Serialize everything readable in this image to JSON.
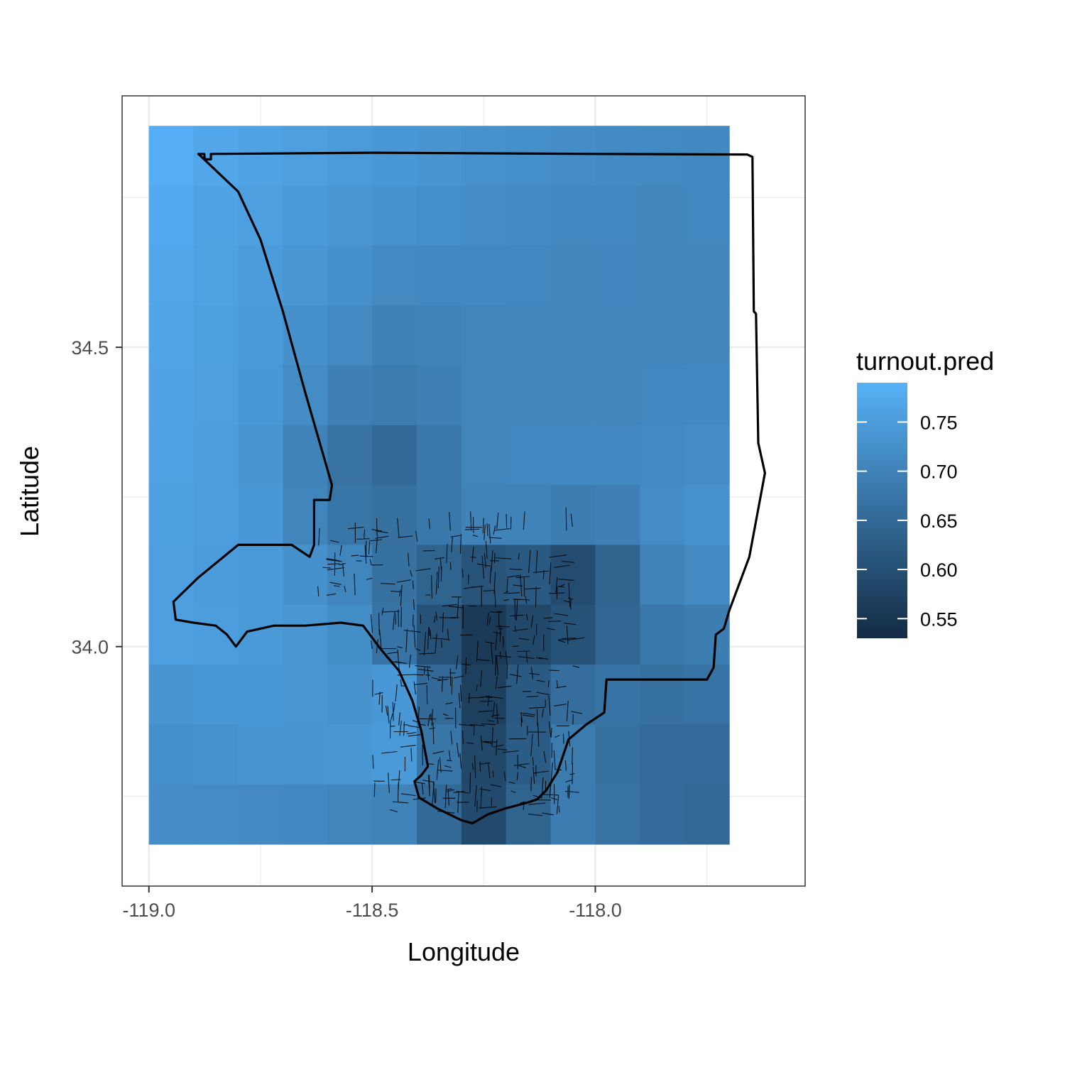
{
  "chart_data": {
    "type": "heatmap",
    "xlabel": "Longitude",
    "ylabel": "Latitude",
    "xlim": [
      -119.06,
      -117.53
    ],
    "ylim": [
      33.6,
      34.92
    ],
    "x_ticks": [
      -119.0,
      -118.5,
      -118.0
    ],
    "x_tick_labels": [
      "-119.0",
      "-118.5",
      "-118.0"
    ],
    "y_ticks": [
      34.0,
      34.5
    ],
    "y_tick_labels": [
      "34.0",
      "34.5"
    ],
    "grid": true,
    "tile_grid": {
      "lon_centers": [
        -118.95,
        -118.85,
        -118.75,
        -118.65,
        -118.55,
        -118.45,
        -118.35,
        -118.25,
        -118.15,
        -118.05,
        -117.95,
        -117.85,
        -117.75
      ],
      "lat_centers": [
        34.82,
        34.72,
        34.62,
        34.52,
        34.42,
        34.32,
        34.22,
        34.12,
        34.02,
        33.92,
        33.82,
        33.72
      ]
    },
    "tile_values": [
      [
        0.785,
        0.77,
        0.762,
        0.755,
        0.748,
        0.74,
        0.735,
        0.73,
        0.725,
        0.72,
        0.717,
        0.714,
        0.712
      ],
      [
        0.775,
        0.765,
        0.755,
        0.745,
        0.738,
        0.73,
        0.725,
        0.72,
        0.716,
        0.712,
        0.71,
        0.708,
        0.71
      ],
      [
        0.77,
        0.76,
        0.75,
        0.738,
        0.728,
        0.715,
        0.712,
        0.712,
        0.71,
        0.708,
        0.707,
        0.706,
        0.708
      ],
      [
        0.767,
        0.757,
        0.745,
        0.728,
        0.715,
        0.698,
        0.7,
        0.705,
        0.705,
        0.705,
        0.706,
        0.706,
        0.708
      ],
      [
        0.765,
        0.755,
        0.74,
        0.718,
        0.695,
        0.685,
        0.695,
        0.705,
        0.708,
        0.708,
        0.708,
        0.71,
        0.712
      ],
      [
        0.763,
        0.752,
        0.735,
        0.7,
        0.668,
        0.65,
        0.68,
        0.705,
        0.71,
        0.71,
        0.712,
        0.715,
        0.718
      ],
      [
        0.758,
        0.752,
        0.74,
        0.705,
        0.675,
        0.665,
        0.68,
        0.7,
        0.7,
        0.69,
        0.695,
        0.718,
        0.73
      ],
      [
        0.755,
        0.75,
        0.745,
        0.728,
        0.705,
        0.665,
        0.64,
        0.61,
        0.62,
        0.595,
        0.64,
        0.7,
        0.715
      ],
      [
        0.755,
        0.752,
        0.745,
        0.738,
        0.722,
        0.67,
        0.605,
        0.56,
        0.585,
        0.605,
        0.645,
        0.68,
        0.69
      ],
      [
        0.735,
        0.74,
        0.74,
        0.738,
        0.73,
        0.74,
        0.65,
        0.57,
        0.62,
        0.66,
        0.67,
        0.665,
        0.67
      ],
      [
        0.725,
        0.73,
        0.735,
        0.735,
        0.738,
        0.745,
        0.675,
        0.585,
        0.625,
        0.685,
        0.665,
        0.655,
        0.655
      ],
      [
        0.72,
        0.718,
        0.715,
        0.712,
        0.705,
        0.7,
        0.65,
        0.59,
        0.64,
        0.688,
        0.668,
        0.655,
        0.65
      ]
    ],
    "legend": {
      "title": "turnout.pred",
      "placement": "right",
      "range": [
        0.53,
        0.79
      ],
      "breaks": [
        0.55,
        0.6,
        0.65,
        0.7,
        0.75
      ],
      "labels": [
        "0.55",
        "0.60",
        "0.65",
        "0.70",
        "0.75"
      ],
      "low_color": "#132b43",
      "high_color": "#56b1f7"
    },
    "county_outline": [
      [
        -118.889,
        34.823
      ],
      [
        -118.876,
        34.823
      ],
      [
        -118.875,
        34.814
      ],
      [
        -118.861,
        34.814
      ],
      [
        -118.861,
        34.823
      ],
      [
        -118.5,
        34.825
      ],
      [
        -118.0,
        34.823
      ],
      [
        -117.66,
        34.822
      ],
      [
        -117.648,
        34.818
      ],
      [
        -117.645,
        34.56
      ],
      [
        -117.64,
        34.556
      ],
      [
        -117.635,
        34.34
      ],
      [
        -117.62,
        34.29
      ],
      [
        -117.655,
        34.15
      ],
      [
        -117.7,
        34.06
      ],
      [
        -117.712,
        34.03
      ],
      [
        -117.73,
        34.02
      ],
      [
        -117.735,
        33.965
      ],
      [
        -117.75,
        33.945
      ],
      [
        -117.92,
        33.945
      ],
      [
        -117.975,
        33.945
      ],
      [
        -117.98,
        33.89
      ],
      [
        -118.0,
        33.88
      ],
      [
        -118.02,
        33.87
      ],
      [
        -118.06,
        33.845
      ],
      [
        -118.085,
        33.79
      ],
      [
        -118.11,
        33.76
      ],
      [
        -118.13,
        33.745
      ],
      [
        -118.15,
        33.74
      ],
      [
        -118.2,
        33.73
      ],
      [
        -118.24,
        33.72
      ],
      [
        -118.275,
        33.705
      ],
      [
        -118.3,
        33.71
      ],
      [
        -118.355,
        33.73
      ],
      [
        -118.395,
        33.748
      ],
      [
        -118.405,
        33.775
      ],
      [
        -118.39,
        33.785
      ],
      [
        -118.375,
        33.8
      ],
      [
        -118.39,
        33.86
      ],
      [
        -118.41,
        33.91
      ],
      [
        -118.44,
        33.96
      ],
      [
        -118.48,
        33.995
      ],
      [
        -118.52,
        34.035
      ],
      [
        -118.57,
        34.04
      ],
      [
        -118.65,
        34.035
      ],
      [
        -118.72,
        34.035
      ],
      [
        -118.78,
        34.025
      ],
      [
        -118.805,
        34.0
      ],
      [
        -118.825,
        34.02
      ],
      [
        -118.85,
        34.035
      ],
      [
        -118.9,
        34.04
      ],
      [
        -118.94,
        34.045
      ],
      [
        -118.945,
        34.075
      ],
      [
        -118.89,
        34.115
      ],
      [
        -118.8,
        34.17
      ],
      [
        -118.68,
        34.17
      ],
      [
        -118.64,
        34.15
      ],
      [
        -118.63,
        34.17
      ],
      [
        -118.63,
        34.245
      ],
      [
        -118.595,
        34.245
      ],
      [
        -118.59,
        34.27
      ],
      [
        -118.65,
        34.425
      ],
      [
        -118.7,
        34.56
      ],
      [
        -118.75,
        34.68
      ],
      [
        -118.8,
        34.76
      ],
      [
        -118.889,
        34.823
      ]
    ]
  }
}
